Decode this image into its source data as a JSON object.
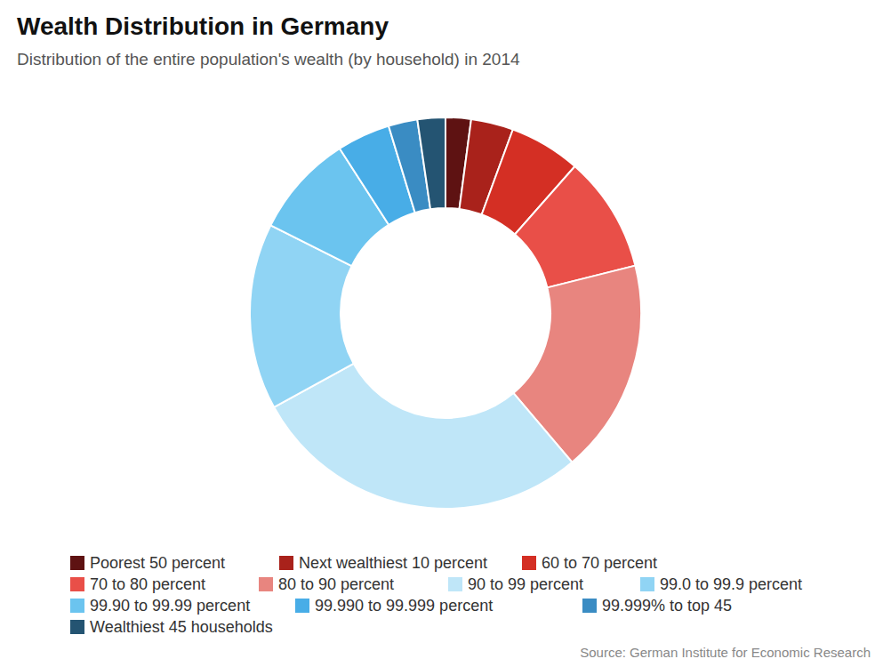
{
  "chart_data": {
    "type": "pie",
    "title": "Wealth Distribution in Germany",
    "subtitle": "Distribution of the entire population's wealth (by household) in 2014",
    "source": "Source: German Institute for Economic Research",
    "categories": [
      "Poorest 50 percent",
      "Next wealthiest 10 percent",
      "60 to 70 percent",
      "70 to 80 percent",
      "80 to 90 percent",
      "90 to 99 percent",
      "99.0 to 99.9 percent",
      "99.90 to 99.99 percent",
      "99.990 to 99.999 percent",
      "99.999% to top 45",
      "Wealthiest 45 households"
    ],
    "values": [
      2.1,
      3.5,
      5.9,
      9.6,
      17.7,
      28.2,
      15.4,
      8.5,
      4.4,
      2.4,
      2.3
    ],
    "colors": [
      "#5e1212",
      "#a9221b",
      "#d42f24",
      "#e94f48",
      "#e8857f",
      "#bfe6f8",
      "#90d4f4",
      "#6bc4ef",
      "#48ade7",
      "#3a8cc3",
      "#245472"
    ],
    "legend": "bottom"
  }
}
